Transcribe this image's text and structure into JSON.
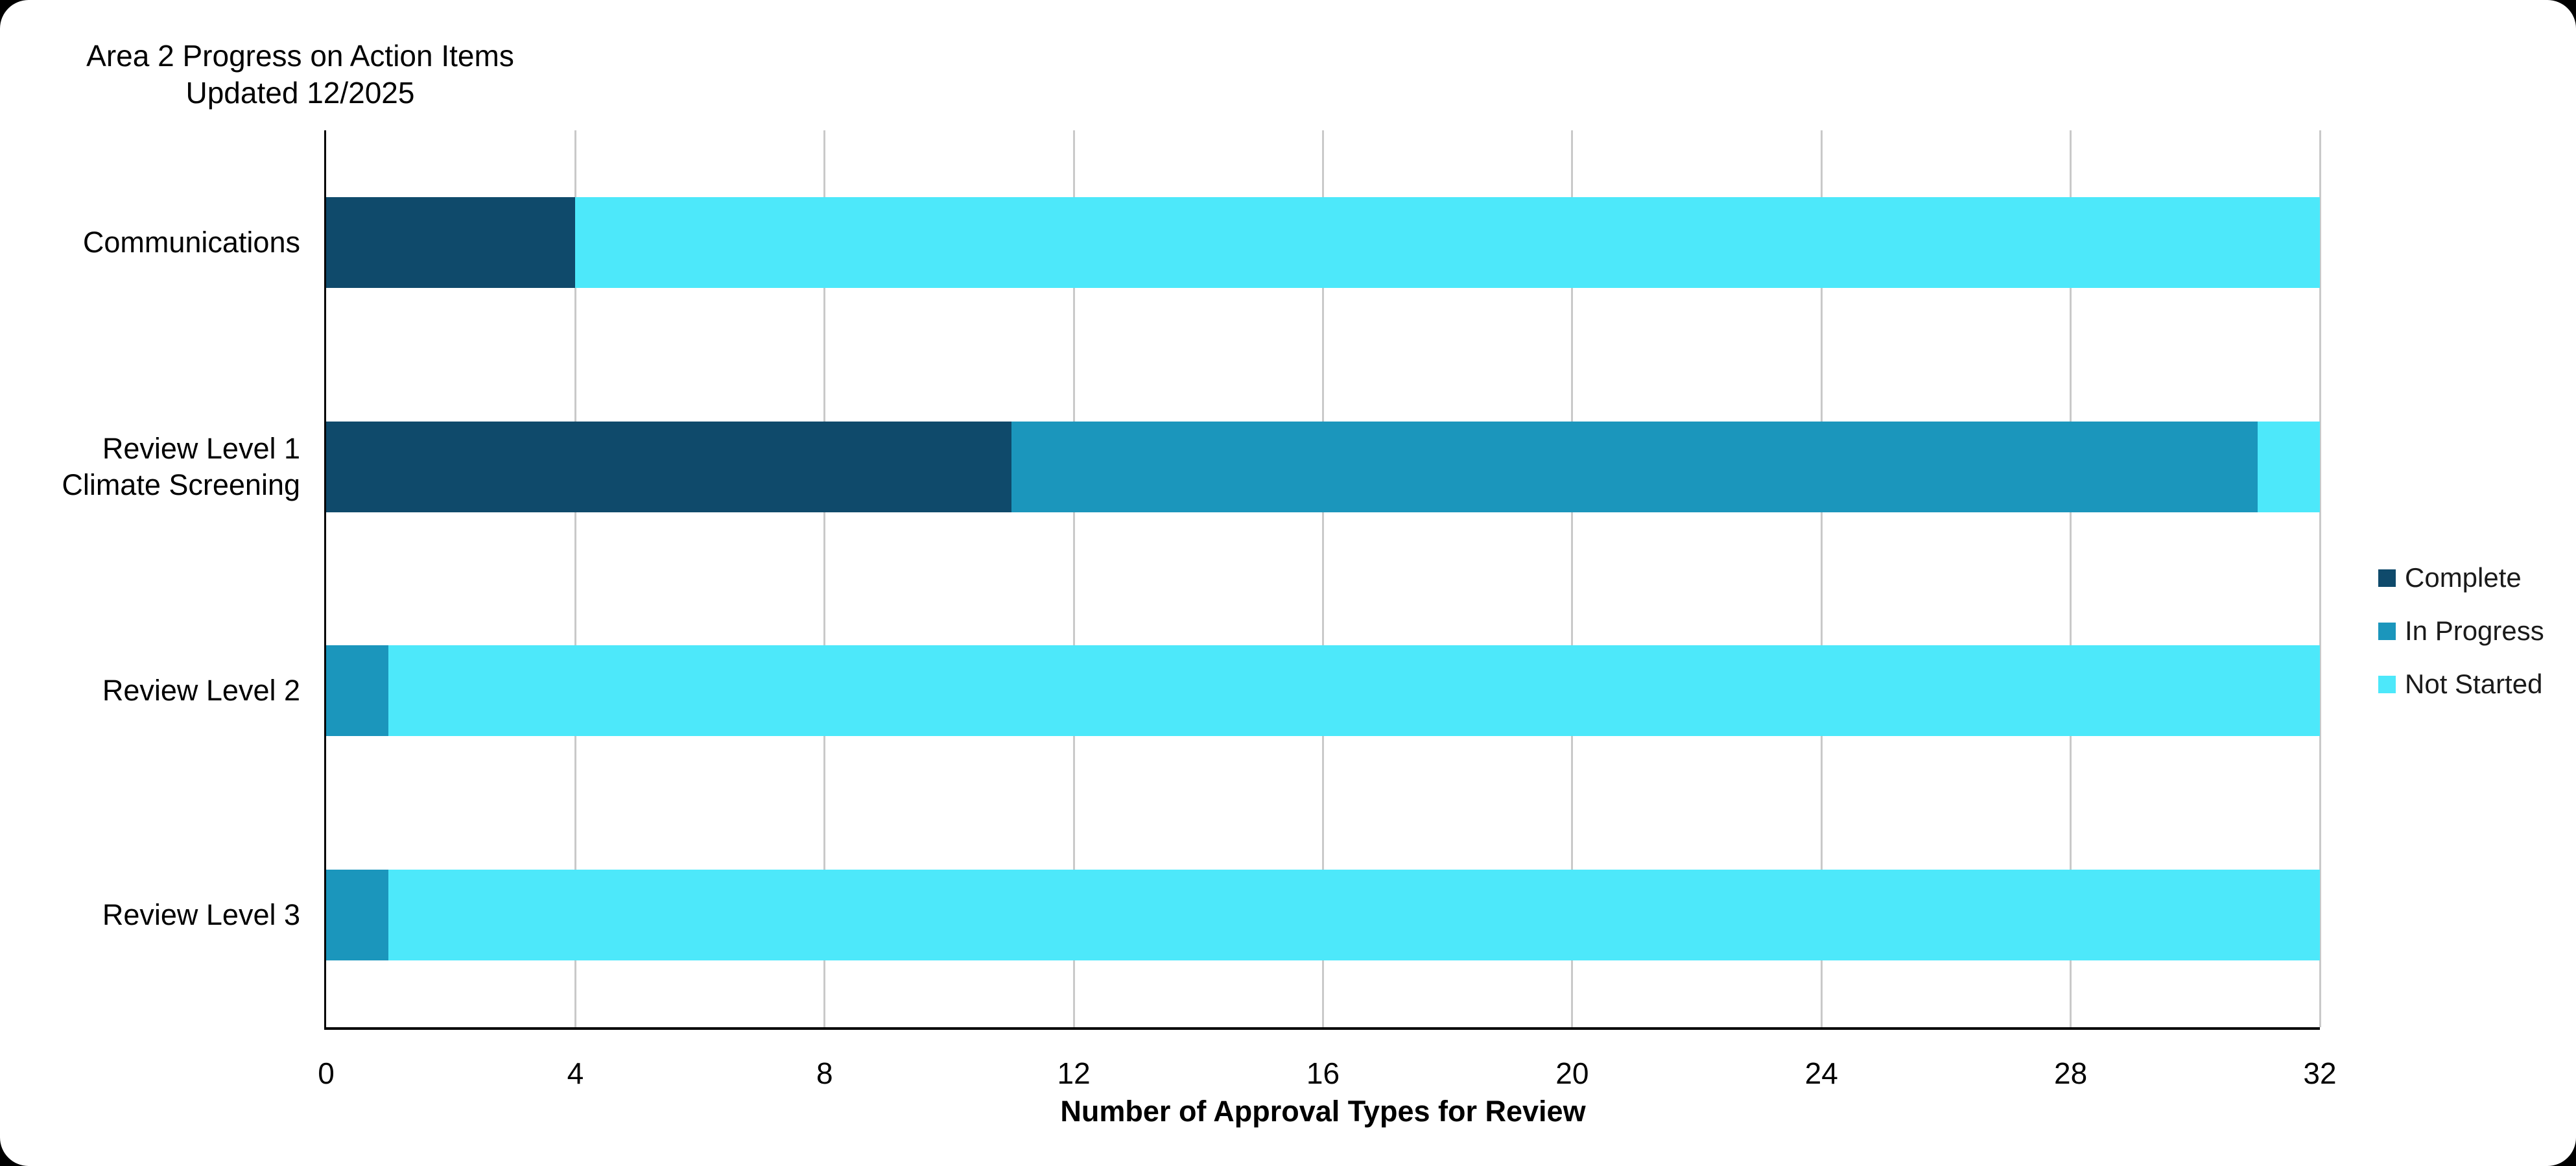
{
  "page": {
    "outer_background": "#000000",
    "canvas_background": "#ffffff"
  },
  "chart_data": {
    "type": "bar",
    "orientation": "horizontal",
    "stacked": true,
    "title": "Area 2 Progress on Action Items",
    "subtitle": "Updated 12/2025",
    "categories": [
      [
        "Communications"
      ],
      [
        "Review Level 1",
        "Climate Screening"
      ],
      [
        "Review Level 2"
      ],
      [
        "Review Level 3"
      ]
    ],
    "series": [
      {
        "name": "Complete",
        "color": "#0f4a6b",
        "values": [
          4,
          11,
          0,
          0
        ]
      },
      {
        "name": "In Progress",
        "color": "#1b96bc",
        "values": [
          0,
          20,
          1,
          1
        ]
      },
      {
        "name": "Not Started",
        "color": "#4de8fa",
        "values": [
          28,
          1,
          31,
          31
        ]
      }
    ],
    "totals_per_category": [
      32,
      32,
      32,
      32
    ],
    "xlabel": "Number of Approval Types for Review",
    "xlim": [
      0,
      32
    ],
    "xticks": [
      0,
      4,
      8,
      12,
      16,
      20,
      24,
      28,
      32
    ],
    "grid": "vertical-only",
    "gridline_color": "#c9c9c9",
    "axis_color": "#000000",
    "legend_position": "right",
    "legend_entries": [
      "Complete",
      "In Progress",
      "Not Started"
    ]
  }
}
